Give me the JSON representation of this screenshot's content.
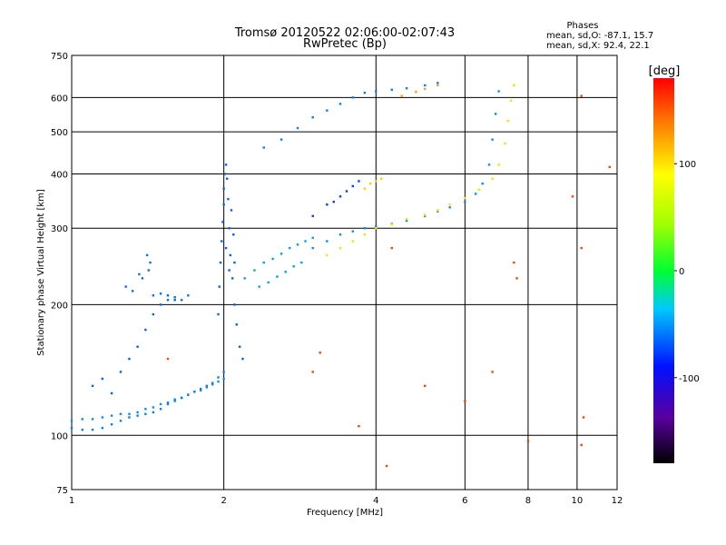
{
  "chart_data": {
    "type": "scatter",
    "title": "Tromsø 20120522 02:06:00-02:07:43",
    "subtitle": "RwPretec (Bp)",
    "xlabel": "Frequency [MHz]",
    "ylabel": "Stationary phase Virtual Height [km]",
    "xscale": "log",
    "yscale": "log",
    "xlim": [
      1,
      12
    ],
    "ylim": [
      75,
      750
    ],
    "xticks": [
      "1",
      "2",
      "4",
      "6",
      "8",
      "10",
      "12"
    ],
    "yticks": [
      "75",
      "100",
      "200",
      "300",
      "400",
      "500",
      "600",
      "750"
    ],
    "grid": true,
    "phases_box": {
      "title": "Phases",
      "line1": "mean, sd,O: -87.1, 15.7",
      "line2": "mean, sd,X:  92.4, 22.1"
    },
    "colorbar": {
      "label": "[deg]",
      "range": [
        -180,
        180
      ],
      "ticks": [
        "100",
        "0",
        "-100"
      ]
    },
    "series": [
      {
        "trace": "o-mode-low",
        "phase": -95,
        "points": [
          [
            1.0,
            108
          ],
          [
            1.05,
            109
          ],
          [
            1.1,
            109
          ],
          [
            1.15,
            110
          ],
          [
            1.2,
            111
          ],
          [
            1.25,
            112
          ],
          [
            1.3,
            112
          ],
          [
            1.35,
            113
          ],
          [
            1.4,
            115
          ],
          [
            1.45,
            116
          ],
          [
            1.5,
            118
          ],
          [
            1.55,
            119
          ],
          [
            1.6,
            121
          ],
          [
            1.65,
            122
          ],
          [
            1.7,
            124
          ],
          [
            1.75,
            126
          ],
          [
            1.8,
            128
          ],
          [
            1.85,
            129
          ],
          [
            1.9,
            131
          ],
          [
            1.95,
            133
          ],
          [
            2.0,
            135
          ]
        ]
      },
      {
        "trace": "o-mode-low2",
        "phase": -100,
        "points": [
          [
            1.0,
            104
          ],
          [
            1.05,
            103
          ],
          [
            1.1,
            103
          ],
          [
            1.15,
            104
          ],
          [
            1.2,
            106
          ],
          [
            1.25,
            108
          ],
          [
            1.3,
            110
          ],
          [
            1.35,
            111
          ],
          [
            1.4,
            112
          ],
          [
            1.45,
            113
          ],
          [
            1.5,
            115
          ],
          [
            1.55,
            118
          ],
          [
            1.6,
            120
          ],
          [
            1.65,
            122
          ],
          [
            1.7,
            124
          ],
          [
            1.75,
            126
          ],
          [
            1.8,
            127
          ],
          [
            1.85,
            130
          ],
          [
            1.9,
            132
          ],
          [
            1.95,
            136
          ],
          [
            2.0,
            140
          ]
        ]
      },
      {
        "trace": "e-spread-low",
        "phase": -110,
        "points": [
          [
            1.1,
            130
          ],
          [
            1.15,
            135
          ],
          [
            1.2,
            125
          ],
          [
            1.25,
            140
          ],
          [
            1.3,
            150
          ],
          [
            1.35,
            160
          ],
          [
            1.4,
            175
          ],
          [
            1.45,
            190
          ],
          [
            1.5,
            200
          ],
          [
            1.55,
            210
          ],
          [
            1.6,
            205
          ]
        ]
      },
      {
        "trace": "spread-1.3-1.6",
        "phase": -105,
        "points": [
          [
            1.28,
            220
          ],
          [
            1.32,
            215
          ],
          [
            1.38,
            230
          ],
          [
            1.42,
            240
          ],
          [
            1.45,
            210
          ],
          [
            1.5,
            212
          ],
          [
            1.55,
            205
          ],
          [
            1.6,
            208
          ],
          [
            1.65,
            205
          ],
          [
            1.7,
            210
          ],
          [
            1.43,
            250
          ],
          [
            1.41,
            260
          ],
          [
            1.36,
            235
          ]
        ]
      },
      {
        "trace": "spread-f-column",
        "phase": -110,
        "points": [
          [
            1.95,
            190
          ],
          [
            1.96,
            220
          ],
          [
            1.97,
            250
          ],
          [
            1.98,
            280
          ],
          [
            1.99,
            310
          ],
          [
            2.0,
            340
          ],
          [
            2.0,
            370
          ],
          [
            2.01,
            400
          ],
          [
            2.02,
            420
          ],
          [
            2.03,
            390
          ],
          [
            2.04,
            350
          ],
          [
            2.05,
            300
          ],
          [
            2.06,
            260
          ],
          [
            2.08,
            230
          ],
          [
            2.1,
            200
          ],
          [
            2.12,
            180
          ],
          [
            2.15,
            160
          ],
          [
            2.18,
            150
          ],
          [
            2.05,
            240
          ],
          [
            2.02,
            270
          ],
          [
            2.07,
            330
          ],
          [
            2.09,
            290
          ],
          [
            2.1,
            250
          ]
        ]
      },
      {
        "trace": "spread-2-3",
        "phase": -90,
        "points": [
          [
            2.2,
            230
          ],
          [
            2.3,
            240
          ],
          [
            2.4,
            250
          ],
          [
            2.5,
            255
          ],
          [
            2.6,
            262
          ],
          [
            2.7,
            270
          ],
          [
            2.8,
            275
          ],
          [
            2.9,
            280
          ],
          [
            3.0,
            285
          ],
          [
            2.35,
            220
          ],
          [
            2.45,
            225
          ],
          [
            2.55,
            232
          ],
          [
            2.65,
            238
          ],
          [
            2.75,
            245
          ],
          [
            2.85,
            250
          ]
        ]
      },
      {
        "trace": "f-trace-mid",
        "phase": -95,
        "points": [
          [
            3.0,
            270
          ],
          [
            3.2,
            280
          ],
          [
            3.4,
            290
          ],
          [
            3.6,
            295
          ],
          [
            3.8,
            300
          ],
          [
            4.0,
            303
          ],
          [
            4.3,
            307
          ],
          [
            4.6,
            312
          ],
          [
            5.0,
            320
          ],
          [
            5.3,
            328
          ],
          [
            5.6,
            335
          ],
          [
            6.0,
            345
          ],
          [
            6.3,
            360
          ],
          [
            6.5,
            380
          ],
          [
            6.7,
            420
          ],
          [
            6.8,
            480
          ],
          [
            6.9,
            550
          ],
          [
            7.0,
            620
          ]
        ]
      },
      {
        "trace": "x-mode-mid",
        "phase": 110,
        "points": [
          [
            3.2,
            260
          ],
          [
            3.4,
            270
          ],
          [
            3.6,
            280
          ],
          [
            3.8,
            290
          ],
          [
            4.0,
            300
          ],
          [
            4.3,
            306
          ],
          [
            4.6,
            315
          ],
          [
            5.0,
            322
          ],
          [
            5.3,
            330
          ],
          [
            5.6,
            340
          ],
          [
            6.0,
            352
          ],
          [
            6.4,
            368
          ],
          [
            6.8,
            390
          ],
          [
            7.0,
            420
          ],
          [
            7.2,
            470
          ],
          [
            7.3,
            530
          ],
          [
            7.4,
            590
          ],
          [
            7.5,
            640
          ]
        ]
      },
      {
        "trace": "f2-upper",
        "phase": -100,
        "points": [
          [
            2.4,
            460
          ],
          [
            2.6,
            480
          ],
          [
            2.8,
            510
          ],
          [
            3.0,
            540
          ],
          [
            3.2,
            560
          ],
          [
            3.4,
            580
          ],
          [
            3.6,
            600
          ],
          [
            3.8,
            615
          ],
          [
            4.0,
            620
          ],
          [
            4.3,
            625
          ],
          [
            4.6,
            630
          ],
          [
            5.0,
            640
          ],
          [
            5.3,
            648
          ]
        ]
      },
      {
        "trace": "f2-upper-x",
        "phase": 130,
        "points": [
          [
            4.5,
            605
          ],
          [
            4.8,
            618
          ],
          [
            5.0,
            628
          ],
          [
            5.3,
            640
          ]
        ]
      },
      {
        "trace": "oblique-340",
        "phase": -120,
        "points": [
          [
            3.0,
            320
          ],
          [
            3.2,
            340
          ],
          [
            3.4,
            355
          ],
          [
            3.5,
            365
          ],
          [
            3.6,
            375
          ],
          [
            3.7,
            385
          ],
          [
            3.3,
            345
          ]
        ]
      },
      {
        "trace": "x-mode-380",
        "phase": 115,
        "points": [
          [
            3.8,
            370
          ],
          [
            3.9,
            380
          ],
          [
            4.0,
            385
          ],
          [
            4.1,
            390
          ]
        ]
      },
      {
        "trace": "scattered",
        "phase": 160,
        "points": [
          [
            1.55,
            150
          ],
          [
            3.1,
            155
          ],
          [
            3.0,
            140
          ],
          [
            3.7,
            105
          ],
          [
            4.2,
            85
          ],
          [
            5.0,
            130
          ],
          [
            6.0,
            120
          ],
          [
            8.0,
            97
          ],
          [
            9.8,
            355
          ],
          [
            10.2,
            270
          ],
          [
            10.3,
            110
          ],
          [
            10.2,
            95
          ],
          [
            10.2,
            605
          ],
          [
            11.6,
            415
          ],
          [
            6.8,
            140
          ],
          [
            7.6,
            230
          ],
          [
            7.5,
            250
          ],
          [
            4.3,
            270
          ]
        ]
      }
    ]
  }
}
